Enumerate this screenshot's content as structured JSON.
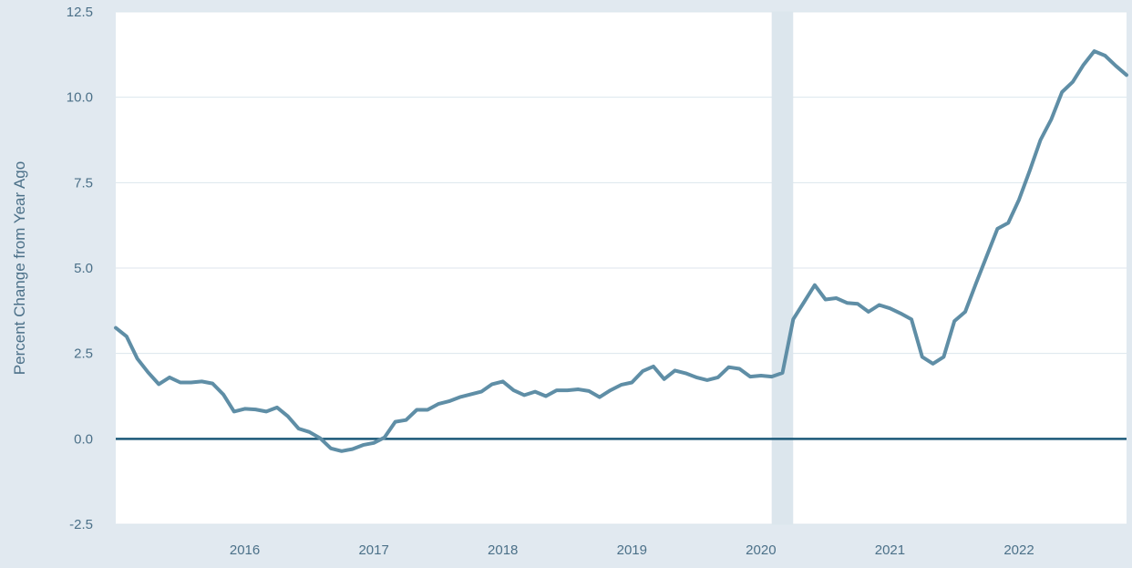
{
  "chart_data": {
    "type": "line",
    "title": "",
    "xlabel": "",
    "ylabel": "Percent Change from Year Ago",
    "ylim": [
      -2.5,
      12.5
    ],
    "yticks": [
      "-2.5",
      "0.0",
      "2.5",
      "5.0",
      "7.5",
      "10.0",
      "12.5"
    ],
    "xticks": [
      "2016",
      "2017",
      "2018",
      "2019",
      "2020",
      "2021",
      "2022"
    ],
    "grid": true,
    "zero_line": true,
    "recession_shading": {
      "start": "2020-02",
      "end": "2020-04"
    },
    "colors": {
      "line": "#5f8ea6",
      "zero_line": "#1b5878",
      "shade": "#dce6ed",
      "plot_bg": "#ffffff",
      "outer_bg": "#e1e9f0",
      "grid": "#dce6ed"
    },
    "series": [
      {
        "x": [
          "2015-01",
          "2015-02",
          "2015-03",
          "2015-04",
          "2015-05",
          "2015-06",
          "2015-07",
          "2015-08",
          "2015-09",
          "2015-10",
          "2015-11",
          "2015-12",
          "2016-01",
          "2016-02",
          "2016-03",
          "2016-04",
          "2016-05",
          "2016-06",
          "2016-07",
          "2016-08",
          "2016-09",
          "2016-10",
          "2016-11",
          "2016-12",
          "2017-01",
          "2017-02",
          "2017-03",
          "2017-04",
          "2017-05",
          "2017-06",
          "2017-07",
          "2017-08",
          "2017-09",
          "2017-10",
          "2017-11",
          "2017-12",
          "2018-01",
          "2018-02",
          "2018-03",
          "2018-04",
          "2018-05",
          "2018-06",
          "2018-07",
          "2018-08",
          "2018-09",
          "2018-10",
          "2018-11",
          "2018-12",
          "2019-01",
          "2019-02",
          "2019-03",
          "2019-04",
          "2019-05",
          "2019-06",
          "2019-07",
          "2019-08",
          "2019-09",
          "2019-10",
          "2019-11",
          "2019-12",
          "2020-01",
          "2020-02",
          "2020-03",
          "2020-04",
          "2020-05",
          "2020-06",
          "2020-07",
          "2020-08",
          "2020-09",
          "2020-10",
          "2020-11",
          "2020-12",
          "2021-01",
          "2021-02",
          "2021-03",
          "2021-04",
          "2021-05",
          "2021-06",
          "2021-07",
          "2021-08",
          "2021-09",
          "2021-10",
          "2021-11",
          "2021-12",
          "2022-01",
          "2022-02",
          "2022-03",
          "2022-04",
          "2022-05",
          "2022-06",
          "2022-07",
          "2022-08",
          "2022-09",
          "2022-10",
          "2022-11"
        ],
        "values": [
          3.25,
          3.0,
          2.35,
          1.95,
          1.6,
          1.8,
          1.65,
          1.65,
          1.68,
          1.62,
          1.3,
          0.8,
          0.88,
          0.86,
          0.8,
          0.92,
          0.66,
          0.3,
          0.2,
          0.02,
          -0.28,
          -0.36,
          -0.3,
          -0.18,
          -0.12,
          0.04,
          0.5,
          0.55,
          0.85,
          0.85,
          1.02,
          1.1,
          1.22,
          1.3,
          1.38,
          1.6,
          1.68,
          1.42,
          1.28,
          1.38,
          1.25,
          1.42,
          1.42,
          1.45,
          1.4,
          1.22,
          1.42,
          1.58,
          1.65,
          1.98,
          2.12,
          1.75,
          2.0,
          1.92,
          1.8,
          1.72,
          1.8,
          2.1,
          2.05,
          1.82,
          1.85,
          1.82,
          1.93,
          3.5,
          4.0,
          4.5,
          4.08,
          4.12,
          3.98,
          3.95,
          3.72,
          3.92,
          3.82,
          3.67,
          3.5,
          2.4,
          2.2,
          2.4,
          3.45,
          3.72,
          4.55,
          5.35,
          6.15,
          6.32,
          7.0,
          7.85,
          8.75,
          9.35,
          10.15,
          10.45,
          10.95,
          11.35,
          11.22,
          10.92,
          10.65
        ]
      }
    ]
  }
}
